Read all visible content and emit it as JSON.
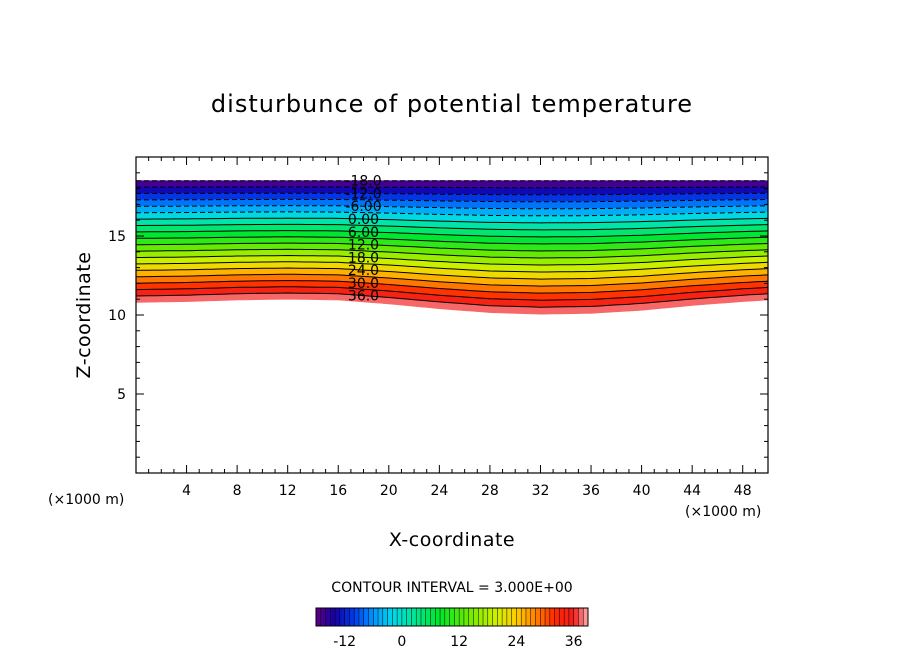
{
  "chart_data": {
    "type": "contour",
    "title": "disturbunce of potential temperature",
    "xlabel": "X-coordinate",
    "ylabel": "Z-coordinate",
    "x_unit": "(×1000 m)",
    "y_unit": "(×1000 m)",
    "xlim": [
      0,
      50
    ],
    "ylim": [
      0,
      20
    ],
    "x_ticks": [
      "4",
      "8",
      "12",
      "16",
      "20",
      "24",
      "28",
      "32",
      "36",
      "40",
      "44",
      "48"
    ],
    "y_ticks": [
      "5",
      "10",
      "15"
    ],
    "contour_interval_text": "CONTOUR INTERVAL = 3.000E+00",
    "contour_interval": 3.0,
    "level_range": [
      -18,
      39
    ],
    "field_top_z": 18.5,
    "negative_contours_dashed": true,
    "contour_labels": [
      "-18.0",
      "-12.0",
      "-6.00",
      "0.00",
      "6.00",
      "12.0",
      "18.0",
      "24.0",
      "30.0",
      "36.0"
    ],
    "lower_boundary_z": {
      "x": [
        0,
        4,
        8,
        12,
        16,
        20,
        24,
        28,
        32,
        36,
        40,
        44,
        48,
        50
      ],
      "z": [
        10.8,
        10.85,
        10.95,
        11.0,
        10.95,
        10.7,
        10.4,
        10.15,
        10.05,
        10.1,
        10.3,
        10.6,
        10.85,
        10.95
      ]
    },
    "colorbar": {
      "ticks": [
        "-12",
        "0",
        "12",
        "24",
        "36"
      ],
      "min": -18,
      "max": 39
    }
  }
}
